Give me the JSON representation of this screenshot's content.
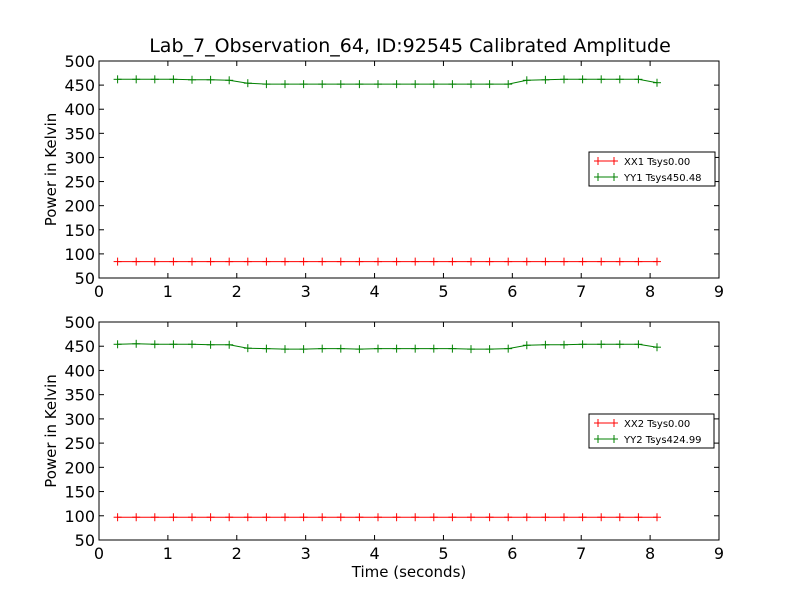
{
  "title": "Lab_7_Observation_64, ID:92545 Calibrated Amplitude",
  "colors": {
    "xx": "#ff0000",
    "yy": "#008000",
    "axes": "#000000",
    "background": "#ffffff"
  },
  "chart_data": [
    {
      "type": "line",
      "title": "Lab_7_Observation_64, ID:92545 Calibrated Amplitude",
      "xlabel": "",
      "ylabel": "Power in Kelvin",
      "xlim": [
        0,
        9
      ],
      "ylim": [
        50,
        500
      ],
      "xticks": [
        0,
        1,
        2,
        3,
        4,
        5,
        6,
        7,
        8,
        9
      ],
      "yticks": [
        50,
        100,
        150,
        200,
        250,
        300,
        350,
        400,
        450,
        500
      ],
      "grid": false,
      "legend_position": "center-right",
      "x": [
        0.27,
        0.54,
        0.81,
        1.08,
        1.35,
        1.62,
        1.89,
        2.16,
        2.43,
        2.7,
        2.97,
        3.24,
        3.51,
        3.78,
        4.05,
        4.32,
        4.59,
        4.86,
        5.13,
        5.4,
        5.67,
        5.94,
        6.21,
        6.48,
        6.75,
        7.02,
        7.29,
        7.56,
        7.83,
        8.1
      ],
      "series": [
        {
          "name": "XX1 Tsys0.00",
          "color": "#ff0000",
          "values": [
            84,
            84,
            84,
            84,
            84,
            84,
            84,
            84,
            84,
            84,
            84,
            84,
            84,
            84,
            84,
            84,
            84,
            84,
            84,
            84,
            84,
            84,
            84,
            84,
            84,
            84,
            84,
            84,
            84,
            84
          ]
        },
        {
          "name": "YY1 Tsys450.48",
          "color": "#008000",
          "values": [
            462,
            462,
            462,
            462,
            461,
            461,
            460,
            454,
            452,
            452,
            452,
            452,
            452,
            452,
            452,
            452,
            452,
            452,
            452,
            452,
            452,
            452,
            460,
            461,
            462,
            462,
            462,
            462,
            462,
            455
          ]
        }
      ]
    },
    {
      "type": "line",
      "title": "",
      "xlabel": "Time (seconds)",
      "ylabel": "Power in Kelvin",
      "xlim": [
        0,
        9
      ],
      "ylim": [
        50,
        500
      ],
      "xticks": [
        0,
        1,
        2,
        3,
        4,
        5,
        6,
        7,
        8,
        9
      ],
      "yticks": [
        50,
        100,
        150,
        200,
        250,
        300,
        350,
        400,
        450,
        500
      ],
      "grid": false,
      "legend_position": "center-right",
      "x": [
        0.27,
        0.54,
        0.81,
        1.08,
        1.35,
        1.62,
        1.89,
        2.16,
        2.43,
        2.7,
        2.97,
        3.24,
        3.51,
        3.78,
        4.05,
        4.32,
        4.59,
        4.86,
        5.13,
        5.4,
        5.67,
        5.94,
        6.21,
        6.48,
        6.75,
        7.02,
        7.29,
        7.56,
        7.83,
        8.1
      ],
      "series": [
        {
          "name": "XX2 Tsys0.00",
          "color": "#ff0000",
          "values": [
            97,
            97,
            97,
            97,
            97,
            97,
            97,
            97,
            97,
            97,
            97,
            97,
            97,
            97,
            97,
            97,
            97,
            97,
            97,
            97,
            97,
            97,
            97,
            97,
            97,
            97,
            97,
            97,
            97,
            97
          ]
        },
        {
          "name": "YY2 Tsys424.99",
          "color": "#008000",
          "values": [
            454,
            455,
            454,
            454,
            454,
            453,
            453,
            446,
            445,
            444,
            444,
            445,
            445,
            444,
            445,
            445,
            445,
            445,
            445,
            444,
            444,
            445,
            452,
            453,
            453,
            454,
            454,
            454,
            454,
            448
          ]
        }
      ]
    }
  ]
}
